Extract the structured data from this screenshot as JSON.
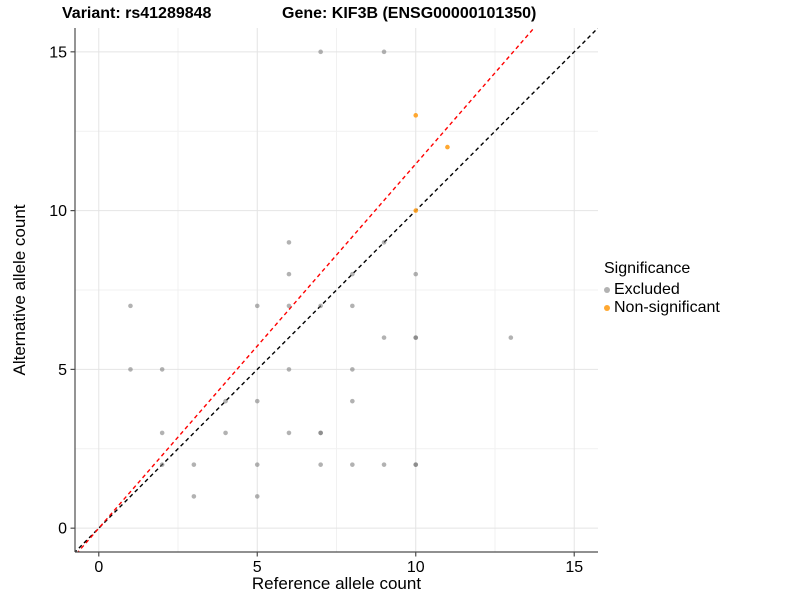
{
  "title": {
    "variant": "Variant: rs41289848",
    "gene": "Gene: KIF3B (ENSG00000101350)"
  },
  "chart_data": {
    "type": "scatter",
    "xlabel": "Reference allele count",
    "ylabel": "Alternative allele count",
    "xlim": [
      -0.75,
      15.75
    ],
    "ylim": [
      -0.75,
      15.75
    ],
    "xticks": [
      0,
      5,
      10,
      15
    ],
    "yticks": [
      0,
      5,
      10,
      15
    ],
    "xticklabels": [
      "0",
      "5",
      "10",
      "15"
    ],
    "yticklabels": [
      "0",
      "5",
      "10",
      "15"
    ],
    "minor_xticks": [
      2.5,
      7.5,
      12.5
    ],
    "minor_yticks": [
      2.5,
      7.5,
      12.5
    ],
    "grid": true,
    "colors": {
      "excluded": "#737373",
      "non_significant": "#FF9E1B",
      "identity_line": "#000000",
      "ratio_line": "#FF0000",
      "grid_major": "#E4E4E4",
      "grid_minor": "#F1F1F1",
      "axis_line": "#4D4D4D"
    },
    "series": [
      {
        "name": "Excluded",
        "color": "#737373",
        "opacity": 0.55,
        "points": [
          [
            7,
            15
          ],
          [
            9,
            15
          ],
          [
            6,
            9
          ],
          [
            9,
            9
          ],
          [
            6,
            8
          ],
          [
            8,
            8
          ],
          [
            10,
            8
          ],
          [
            1,
            7
          ],
          [
            5,
            7
          ],
          [
            6,
            7
          ],
          [
            7,
            7
          ],
          [
            8,
            7
          ],
          [
            9,
            6
          ],
          [
            10,
            6
          ],
          [
            10,
            6
          ],
          [
            13,
            6
          ],
          [
            1,
            5
          ],
          [
            2,
            5
          ],
          [
            6,
            5
          ],
          [
            8,
            5
          ],
          [
            4,
            4
          ],
          [
            5,
            4
          ],
          [
            8,
            4
          ],
          [
            2,
            3
          ],
          [
            4,
            3
          ],
          [
            6,
            3
          ],
          [
            7,
            3
          ],
          [
            7,
            3
          ],
          [
            2,
            2
          ],
          [
            3,
            2
          ],
          [
            5,
            2
          ],
          [
            7,
            2
          ],
          [
            8,
            2
          ],
          [
            9,
            2
          ],
          [
            10,
            2
          ],
          [
            10,
            2
          ],
          [
            3,
            1
          ],
          [
            5,
            1
          ]
        ]
      },
      {
        "name": "Non-significant",
        "color": "#FF9E1B",
        "opacity": 0.9,
        "points": [
          [
            10,
            13
          ],
          [
            11,
            12
          ],
          [
            10,
            10
          ]
        ]
      }
    ],
    "lines": [
      {
        "name": "identity-line",
        "slope": 1.0,
        "intercept": 0,
        "color": "#000000",
        "dash": "4 3.2"
      },
      {
        "name": "expected-ratio-line",
        "slope": 1.147,
        "intercept": 0,
        "color": "#FF0000",
        "dash": "4 3.2"
      }
    ],
    "legend": {
      "title": "Significance",
      "position": "right",
      "entries": [
        {
          "label": "Excluded",
          "color": "#737373",
          "opacity": 0.55
        },
        {
          "label": "Non-significant",
          "color": "#FF9E1B",
          "opacity": 0.9
        }
      ]
    }
  }
}
